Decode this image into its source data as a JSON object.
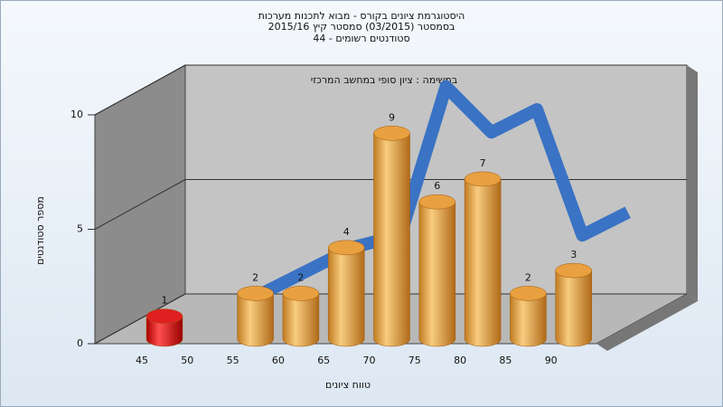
{
  "chart_data": {
    "type": "bar",
    "title": [
      "היסטוגרמת ציונים בקורס - מבוא לתכנות מערכות",
      "בסמסטר  (03/2015)  סמסטר קיץ  2015/16",
      "סטודנטים רשומים - 44"
    ],
    "subtitle": "במשימה : ציון סופי במחשב המרכזי",
    "x_label": "טווח ציונים",
    "y_label": "מספר סטודנטים",
    "categories": [
      "45",
      "50",
      "55",
      "60",
      "65",
      "70",
      "75",
      "80",
      "85",
      "90"
    ],
    "values": [
      1,
      null,
      2,
      2,
      4,
      9,
      6,
      7,
      2,
      3
    ],
    "colors": [
      "#e02020",
      "#e8a040",
      "#e8a040",
      "#e8a040",
      "#e8a040",
      "#e8a040",
      "#e8a040",
      "#e8a040",
      "#e8a040",
      "#e8a040"
    ],
    "curve": {
      "color": "#3a72c4",
      "values": [
        null,
        0.5,
        1.5,
        2.5,
        3,
        9.5,
        7.5,
        8.5,
        3,
        4
      ]
    },
    "ylim": [
      0,
      10
    ],
    "yticks": [
      0,
      5,
      10
    ],
    "grid": true
  }
}
